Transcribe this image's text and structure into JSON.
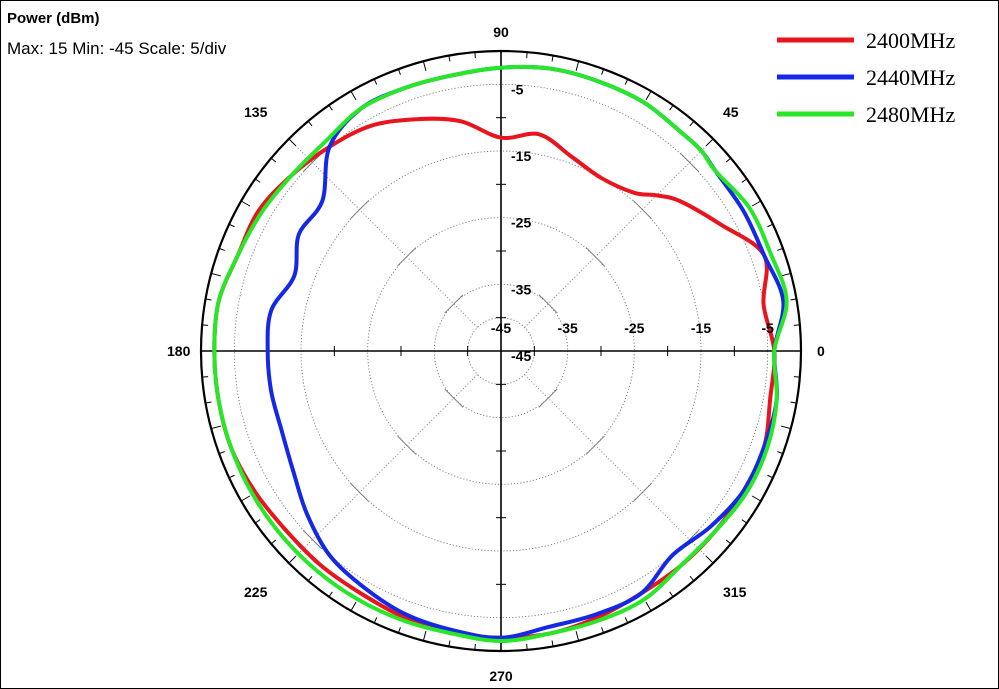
{
  "header": {
    "title": "Power (dBm)",
    "subtitle": "Max: 15 Min: -45 Scale: 5/div"
  },
  "chart_data": {
    "type": "polar",
    "title": "Power (dBm)",
    "angle_unit": "degrees",
    "angle_labels": [
      "90",
      "45",
      "0",
      "315",
      "270",
      "225",
      "180",
      "135"
    ],
    "radial_tick_labels": [
      "-5",
      "-15",
      "-25",
      "-35",
      "-45"
    ],
    "radial_labels_horizontal": [
      "-45",
      "-35",
      "-25",
      "-15",
      "-5"
    ],
    "rlim": [
      -45,
      0
    ],
    "grid": true,
    "legend": "top-right",
    "series": [
      {
        "name": "2400MHz",
        "color": "#e8141e",
        "angles": [
          0,
          10,
          20,
          30,
          40,
          45,
          50,
          60,
          70,
          80,
          90,
          100,
          110,
          120,
          130,
          140,
          150,
          160,
          170,
          180,
          190,
          200,
          210,
          220,
          230,
          240,
          250,
          260,
          270,
          280,
          290,
          300,
          310,
          320,
          330,
          340,
          350
        ],
        "values": [
          -4,
          -5,
          -3,
          -7,
          -10,
          -12,
          -14,
          -15,
          -14,
          -12,
          -13,
          -10,
          -8,
          -6,
          -5,
          -4,
          -3,
          -3,
          -2,
          -2,
          -2,
          -2,
          -2.5,
          -3,
          -3,
          -3,
          -2.5,
          -2,
          -2,
          -2,
          -2.5,
          -3,
          -3,
          -3,
          -3,
          -3,
          -4
        ]
      },
      {
        "name": "2440MHz",
        "color": "#1428e6",
        "angles": [
          0,
          10,
          20,
          30,
          40,
          45,
          50,
          60,
          70,
          80,
          90,
          100,
          110,
          120,
          130,
          140,
          150,
          160,
          170,
          180,
          190,
          200,
          210,
          220,
          230,
          240,
          250,
          260,
          270,
          280,
          290,
          300,
          310,
          320,
          330,
          340,
          350
        ],
        "values": [
          -4,
          -2,
          -3,
          -3,
          -3,
          -2.5,
          -2.5,
          -2,
          -2,
          -2,
          -2.5,
          -3,
          -3,
          -3,
          -5,
          -10,
          -10,
          -12,
          -10,
          -10,
          -10,
          -10,
          -9,
          -7,
          -5,
          -4,
          -3,
          -2.5,
          -2,
          -3,
          -3,
          -3,
          -5,
          -4,
          -3,
          -3,
          -3
        ]
      },
      {
        "name": "2480MHz",
        "color": "#28e628",
        "angles": [
          0,
          10,
          20,
          30,
          40,
          45,
          50,
          60,
          70,
          80,
          90,
          100,
          110,
          120,
          130,
          140,
          150,
          160,
          170,
          180,
          190,
          200,
          210,
          220,
          230,
          240,
          250,
          260,
          270,
          280,
          290,
          300,
          310,
          320,
          330,
          340,
          350
        ],
        "values": [
          -4,
          -1.5,
          -2,
          -2,
          -3,
          -2.5,
          -2.5,
          -2,
          -2,
          -2,
          -2.5,
          -3,
          -3,
          -3,
          -4,
          -4,
          -3.5,
          -3,
          -2,
          -2,
          -2,
          -2,
          -2,
          -2,
          -2,
          -2,
          -2,
          -2,
          -1.5,
          -2,
          -2,
          -2,
          -3,
          -3,
          -2.5,
          -2.5,
          -3
        ]
      }
    ]
  }
}
